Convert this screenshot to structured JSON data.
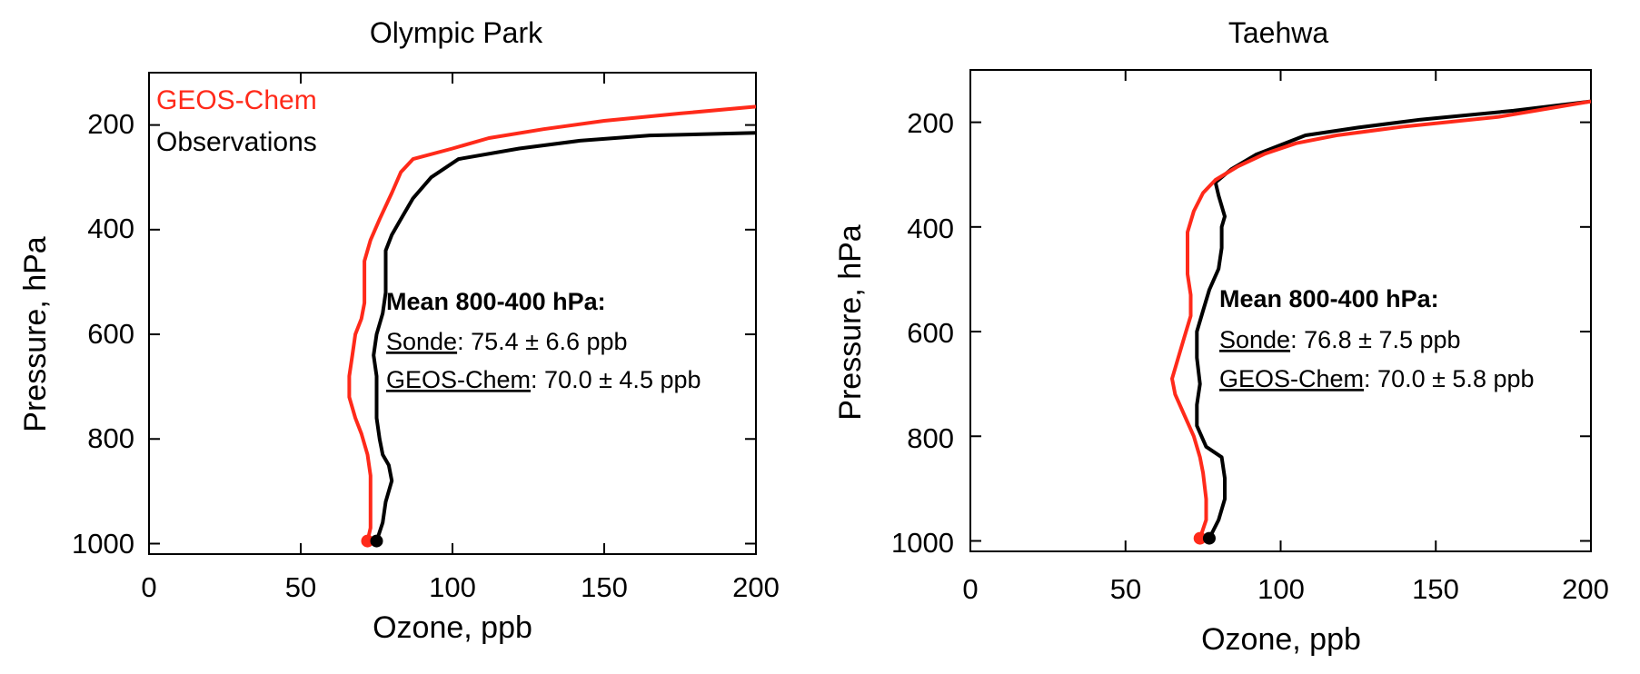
{
  "chart_data": [
    {
      "type": "line",
      "title": "Olympic Park",
      "xlabel": "Ozone, ppb",
      "ylabel": "Pressure, hPa",
      "xlim": [
        0,
        200
      ],
      "ylim": [
        1020,
        100
      ],
      "x_ticks": [
        "0",
        "50",
        "100",
        "150",
        "200"
      ],
      "y_ticks": [
        "200",
        "400",
        "600",
        "800",
        "1000"
      ],
      "legend": [
        {
          "name": "GEOS-Chem",
          "color": "#ff2a1a"
        },
        {
          "name": "Observations",
          "color": "#000000"
        }
      ],
      "legend_position": "top-left",
      "series": [
        {
          "name": "GEOS-Chem",
          "color": "#ff2a1a",
          "points": [
            [
              72,
              995
            ],
            [
              73,
              970
            ],
            [
              73,
              920
            ],
            [
              73,
              870
            ],
            [
              72,
              830
            ],
            [
              70,
              790
            ],
            [
              68,
              760
            ],
            [
              66,
              720
            ],
            [
              66,
              680
            ],
            [
              67,
              640
            ],
            [
              68,
              600
            ],
            [
              70,
              570
            ],
            [
              71,
              540
            ],
            [
              71,
              500
            ],
            [
              71,
              460
            ],
            [
              73,
              420
            ],
            [
              76,
              380
            ],
            [
              80,
              330
            ],
            [
              83,
              290
            ],
            [
              87,
              265
            ],
            [
              100,
              245
            ],
            [
              112,
              225
            ],
            [
              130,
              208
            ],
            [
              150,
              192
            ],
            [
              175,
              178
            ],
            [
              200,
              165
            ]
          ]
        },
        {
          "name": "Observations",
          "color": "#000000",
          "points": [
            [
              75,
              995
            ],
            [
              77,
              960
            ],
            [
              78,
              920
            ],
            [
              80,
              880
            ],
            [
              79,
              850
            ],
            [
              77,
              830
            ],
            [
              76,
              800
            ],
            [
              75,
              760
            ],
            [
              75,
              720
            ],
            [
              75,
              680
            ],
            [
              74,
              640
            ],
            [
              75,
              600
            ],
            [
              77,
              560
            ],
            [
              78,
              520
            ],
            [
              78,
              480
            ],
            [
              78,
              440
            ],
            [
              80,
              410
            ],
            [
              83,
              380
            ],
            [
              87,
              340
            ],
            [
              93,
              300
            ],
            [
              102,
              265
            ],
            [
              122,
              245
            ],
            [
              142,
              230
            ],
            [
              165,
              220
            ],
            [
              200,
              215
            ]
          ]
        }
      ],
      "markers": [
        {
          "series": "GEOS-Chem",
          "x": 72,
          "y": 995,
          "color": "#ff2a1a"
        },
        {
          "series": "Observations",
          "x": 75,
          "y": 995,
          "color": "#000000"
        }
      ],
      "annotation": {
        "heading": "Mean 800-400 hPa:",
        "lines": [
          {
            "label": "Sonde",
            "value": ": 75.4 ± 6.6 ppb"
          },
          {
            "label": "GEOS-Chem",
            "value": ": 70.0 ± 4.5 ppb"
          }
        ]
      }
    },
    {
      "type": "line",
      "title": "Taehwa",
      "xlabel": "Ozone, ppb",
      "ylabel": "Pressure, hPa",
      "xlim": [
        0,
        200
      ],
      "ylim": [
        1020,
        100
      ],
      "x_ticks": [
        "0",
        "50",
        "100",
        "150",
        "200"
      ],
      "y_ticks": [
        "200",
        "400",
        "600",
        "800",
        "1000"
      ],
      "series": [
        {
          "name": "GEOS-Chem",
          "color": "#ff2a1a",
          "points": [
            [
              74,
              995
            ],
            [
              76,
              960
            ],
            [
              76,
              920
            ],
            [
              75,
              870
            ],
            [
              74,
              840
            ],
            [
              72,
              800
            ],
            [
              69,
              760
            ],
            [
              66,
              720
            ],
            [
              65,
              690
            ],
            [
              67,
              650
            ],
            [
              69,
              610
            ],
            [
              71,
              570
            ],
            [
              71,
              530
            ],
            [
              70,
              490
            ],
            [
              70,
              450
            ],
            [
              70,
              410
            ],
            [
              72,
              370
            ],
            [
              75,
              335
            ],
            [
              79,
              310
            ],
            [
              86,
              285
            ],
            [
              95,
              260
            ],
            [
              105,
              240
            ],
            [
              118,
              225
            ],
            [
              140,
              208
            ],
            [
              170,
              190
            ],
            [
              200,
              160
            ]
          ]
        },
        {
          "name": "Observations",
          "color": "#000000",
          "points": [
            [
              77,
              995
            ],
            [
              80,
              960
            ],
            [
              82,
              920
            ],
            [
              82,
              880
            ],
            [
              81,
              840
            ],
            [
              76,
              820
            ],
            [
              73,
              780
            ],
            [
              73,
              740
            ],
            [
              74,
              700
            ],
            [
              73,
              650
            ],
            [
              73,
              600
            ],
            [
              75,
              560
            ],
            [
              77,
              520
            ],
            [
              80,
              480
            ],
            [
              81,
              440
            ],
            [
              81,
              400
            ],
            [
              82,
              380
            ],
            [
              80,
              340
            ],
            [
              79,
              315
            ],
            [
              84,
              290
            ],
            [
              92,
              262
            ],
            [
              108,
              225
            ],
            [
              125,
              210
            ],
            [
              145,
              195
            ],
            [
              175,
              178
            ],
            [
              200,
              160
            ]
          ]
        }
      ],
      "markers": [
        {
          "series": "GEOS-Chem",
          "x": 74,
          "y": 995,
          "color": "#ff2a1a"
        },
        {
          "series": "Observations",
          "x": 77,
          "y": 995,
          "color": "#000000"
        }
      ],
      "annotation": {
        "heading": "Mean 800-400 hPa:",
        "lines": [
          {
            "label": "Sonde",
            "value": ": 76.8 ± 7.5 ppb"
          },
          {
            "label": "GEOS-Chem",
            "value": ": 70.0 ± 5.8 ppb"
          }
        ]
      }
    }
  ]
}
